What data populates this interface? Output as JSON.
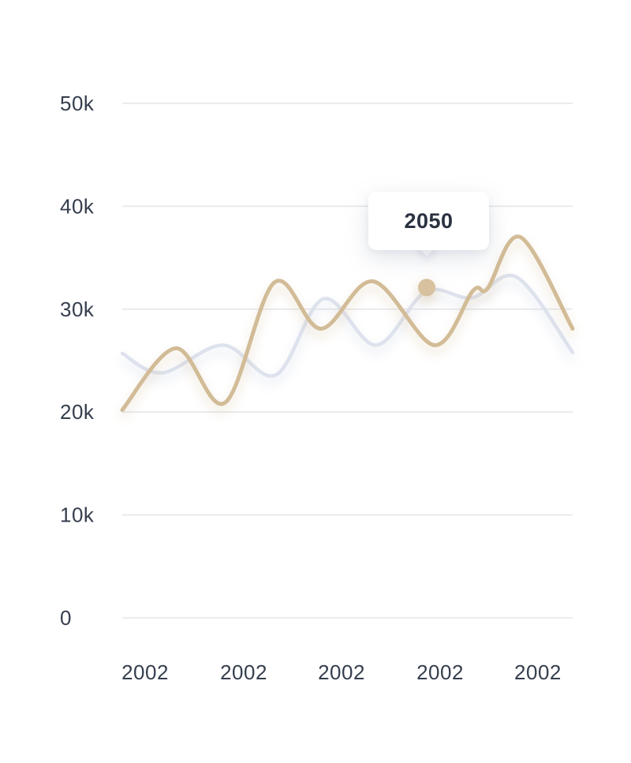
{
  "chart_data": {
    "type": "line",
    "title": "",
    "xlabel": "",
    "ylabel": "",
    "grid": "horizontal",
    "legend": "none",
    "y_axis": {
      "tick_labels": [
        "50k",
        "40k",
        "30k",
        "20k",
        "10k",
        "0"
      ],
      "tick_values_k": [
        50,
        40,
        30,
        20,
        10,
        0
      ],
      "ylim_k": [
        0,
        50
      ],
      "unit": "thousands"
    },
    "x_axis": {
      "tick_labels": [
        "2002",
        "2002",
        "2002",
        "2002",
        "2002"
      ]
    },
    "series": [
      {
        "name": "secondary-series",
        "color": "#dde2ed",
        "shadow_color": "rgba(186,196,218,0.45)",
        "stroke_width": 4.5,
        "points": [
          [
            0.0,
            25.7
          ],
          [
            0.088,
            23.8
          ],
          [
            0.224,
            26.5
          ],
          [
            0.341,
            23.6
          ],
          [
            0.447,
            31.0
          ],
          [
            0.564,
            26.5
          ],
          [
            0.674,
            31.7
          ],
          [
            0.776,
            31.1
          ],
          [
            0.876,
            33.1
          ],
          [
            1.0,
            25.8
          ]
        ]
      },
      {
        "name": "highlight-series",
        "color": "#d2bc97",
        "shadow_color": "rgba(206,178,136,0.42)",
        "stroke_width": 5,
        "points": [
          [
            0.0,
            20.2
          ],
          [
            0.119,
            26.2
          ],
          [
            0.228,
            20.9
          ],
          [
            0.338,
            32.6
          ],
          [
            0.441,
            28.1
          ],
          [
            0.557,
            32.7
          ],
          [
            0.693,
            26.5
          ],
          [
            0.779,
            31.8
          ],
          [
            0.811,
            32.0
          ],
          [
            0.884,
            37.0
          ],
          [
            1.0,
            28.1
          ]
        ]
      }
    ],
    "tooltip": {
      "label": "2050",
      "marker": {
        "series": "highlight-series",
        "x": 0.676,
        "y_k": 32.1,
        "color": "#d7c19e",
        "radius": 11
      }
    }
  },
  "colors": {
    "background": "#ffffff",
    "gridline": "#e4e5e9",
    "axis_text": "#353e4d",
    "tooltip_bg": "#ffffff",
    "tooltip_text": "#2a3240"
  }
}
